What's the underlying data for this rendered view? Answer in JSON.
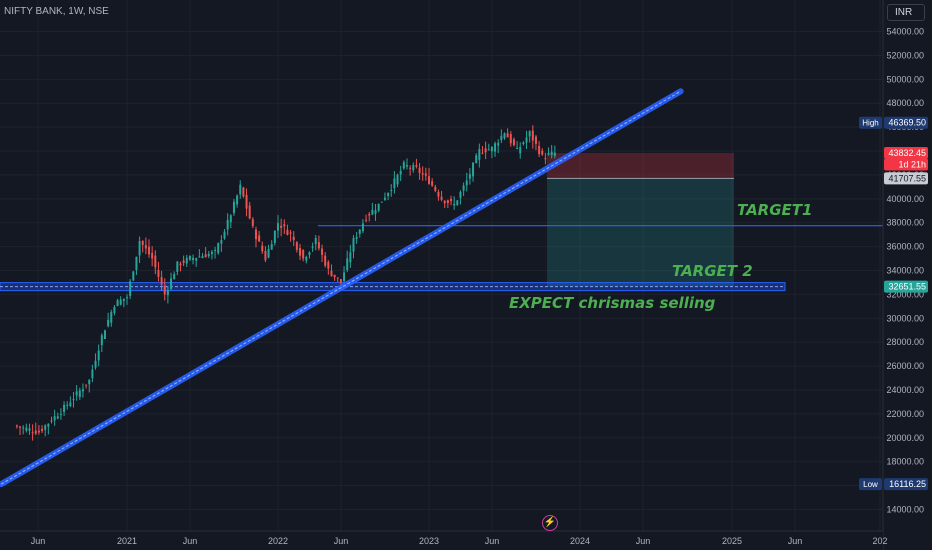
{
  "header": {
    "ticker": "NIFTY BANK, 1W, NSE",
    "currency": "INR"
  },
  "chart_data": {
    "type": "candlestick",
    "symbol": "NIFTY BANK",
    "timeframe": "1W",
    "exchange": "NSE",
    "x_ticks": [
      "Jun",
      "2021",
      "Jun",
      "2022",
      "Jun",
      "2023",
      "Jun",
      "2024",
      "Jun",
      "2025",
      "Jun",
      "202"
    ],
    "y_ticks": [
      "54000.00",
      "52000.00",
      "50000.00",
      "48000.00",
      "46000.00",
      "44000.00",
      "42000.00",
      "40000.00",
      "38000.00",
      "36000.00",
      "34000.00",
      "32000.00",
      "30000.00",
      "28000.00",
      "26000.00",
      "24000.00",
      "22000.00",
      "20000.00",
      "18000.00",
      "16000.00",
      "14000.00"
    ],
    "ylim": [
      13200,
      54800
    ],
    "price_series": [
      {
        "date": "2020-04",
        "close": 21000
      },
      {
        "date": "2020-06",
        "close": 20500
      },
      {
        "date": "2020-08",
        "close": 22500
      },
      {
        "date": "2020-10",
        "close": 24800
      },
      {
        "date": "2020-11",
        "close": 28500
      },
      {
        "date": "2020-12",
        "close": 31200
      },
      {
        "date": "2021-01",
        "close": 31800
      },
      {
        "date": "2021-02",
        "close": 36500
      },
      {
        "date": "2021-03",
        "close": 35000
      },
      {
        "date": "2021-04",
        "close": 32000
      },
      {
        "date": "2021-05",
        "close": 34500
      },
      {
        "date": "2021-06",
        "close": 35000
      },
      {
        "date": "2021-08",
        "close": 35500
      },
      {
        "date": "2021-09",
        "close": 38000
      },
      {
        "date": "2021-10",
        "close": 41000
      },
      {
        "date": "2021-11",
        "close": 37500
      },
      {
        "date": "2021-12",
        "close": 35000
      },
      {
        "date": "2022-01",
        "close": 38000
      },
      {
        "date": "2022-02",
        "close": 37000
      },
      {
        "date": "2022-03",
        "close": 35000
      },
      {
        "date": "2022-04",
        "close": 36500
      },
      {
        "date": "2022-05",
        "close": 34000
      },
      {
        "date": "2022-06",
        "close": 33000
      },
      {
        "date": "2022-07",
        "close": 36500
      },
      {
        "date": "2022-08",
        "close": 38500
      },
      {
        "date": "2022-09",
        "close": 39500
      },
      {
        "date": "2022-10",
        "close": 41000
      },
      {
        "date": "2022-11",
        "close": 42800
      },
      {
        "date": "2022-12",
        "close": 42500
      },
      {
        "date": "2023-01",
        "close": 41500
      },
      {
        "date": "2023-02",
        "close": 40000
      },
      {
        "date": "2023-03",
        "close": 39500
      },
      {
        "date": "2023-04",
        "close": 41500
      },
      {
        "date": "2023-05",
        "close": 44000
      },
      {
        "date": "2023-06",
        "close": 44200
      },
      {
        "date": "2023-07",
        "close": 45600
      },
      {
        "date": "2023-08",
        "close": 44000
      },
      {
        "date": "2023-09",
        "close": 45500
      },
      {
        "date": "2023-10",
        "close": 43500
      },
      {
        "date": "2023-11",
        "close": 43832.45
      }
    ],
    "price_labels": [
      {
        "label": "High",
        "value": "46369.50",
        "price": 46369.5,
        "color": "#1e3a70",
        "text_color": "#ffffff"
      },
      {
        "label": "",
        "value": "43832.45",
        "price": 43832.45,
        "color": "#f23645",
        "text_color": "#ffffff"
      },
      {
        "label": "",
        "value": "1d 21h",
        "price": 42870,
        "color": "#f23645",
        "text_color": "#ffffff"
      },
      {
        "label": "",
        "value": "41707.55",
        "price": 41707.55,
        "color": "#c9ccd4",
        "text_color": "#131722"
      },
      {
        "label": "",
        "value": "32651.55",
        "price": 32651.55,
        "color": "#26a69a",
        "text_color": "#ffffff"
      },
      {
        "label": "Low",
        "value": "16116.25",
        "price": 16116.25,
        "color": "#1e3a70",
        "text_color": "#ffffff"
      }
    ],
    "levels": [
      {
        "name": "target1",
        "price": 37750
      },
      {
        "name": "support",
        "price": 32650
      }
    ],
    "trendline": {
      "from": {
        "date": "2020-03",
        "price": 16116
      },
      "to": {
        "date": "2024-09",
        "price": 49000
      }
    },
    "position": {
      "entry": 41707.55,
      "stop": 43832.45,
      "target": 32651.55
    },
    "annotations": {
      "target1": "TARGET1",
      "target2": "TARGET 2",
      "expect": "EXPECT chrismas selling"
    }
  },
  "footer": {
    "bolt_icon": "lightning-icon"
  }
}
